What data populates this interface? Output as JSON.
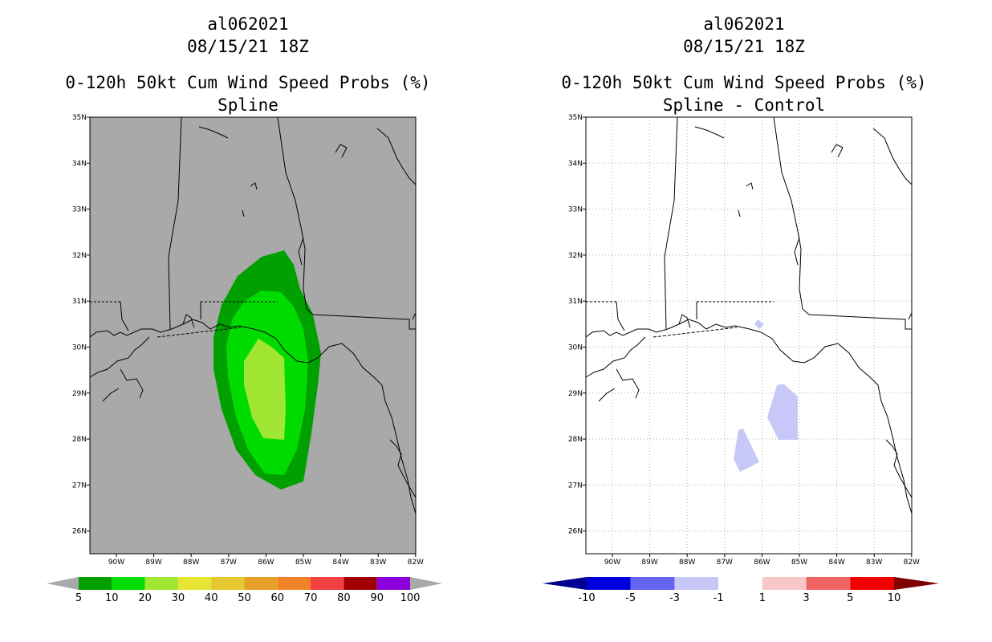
{
  "left": {
    "storm_id": "al062021",
    "datetime": "08/15/21 18Z",
    "product": "0-120h 50kt Cum Wind Speed Probs (%)",
    "subtitle": "Spline",
    "background_color": "#a9a9a9",
    "lat_labels": [
      "35N",
      "34N",
      "33N",
      "32N",
      "31N",
      "30N",
      "29N",
      "28N",
      "27N",
      "26N"
    ],
    "lon_labels": [
      "90W",
      "89W",
      "88W",
      "87W",
      "86W",
      "85W",
      "84W",
      "83W",
      "82W"
    ],
    "colorbar": {
      "colors": [
        "#00a000",
        "#00dc00",
        "#a0e632",
        "#e6e632",
        "#e6c832",
        "#e6a028",
        "#f08228",
        "#f04040",
        "#a00000",
        "#8c00dc"
      ],
      "labels": [
        "5",
        "10",
        "20",
        "30",
        "40",
        "50",
        "60",
        "70",
        "80",
        "90",
        "100"
      ],
      "end_triangle_color": "#a9a9a9"
    }
  },
  "right": {
    "storm_id": "al062021",
    "datetime": "08/15/21 18Z",
    "product": "0-120h 50kt Cum Wind Speed Probs (%)",
    "subtitle": "Spline - Control",
    "background_color": "#ffffff",
    "lat_labels": [
      "35N",
      "34N",
      "33N",
      "32N",
      "31N",
      "30N",
      "29N",
      "28N",
      "27N",
      "26N"
    ],
    "lon_labels": [
      "90W",
      "89W",
      "88W",
      "87W",
      "86W",
      "85W",
      "84W",
      "83W",
      "82W"
    ],
    "colorbar": {
      "colors": [
        "#0000dc",
        "#6464f0",
        "#c8c8f8",
        "#ffffff",
        "#f8c8c8",
        "#f06464",
        "#f00000"
      ],
      "labels": [
        "-10",
        "-5",
        "-3",
        "-1",
        "1",
        "3",
        "5",
        "10"
      ],
      "low_triangle_color": "#000090",
      "high_triangle_color": "#800000"
    }
  },
  "fill_colors": {
    "p5": "#00a000",
    "p10": "#00dc00",
    "p20": "#a0e632",
    "diff_neg": "#c8c8f8"
  }
}
